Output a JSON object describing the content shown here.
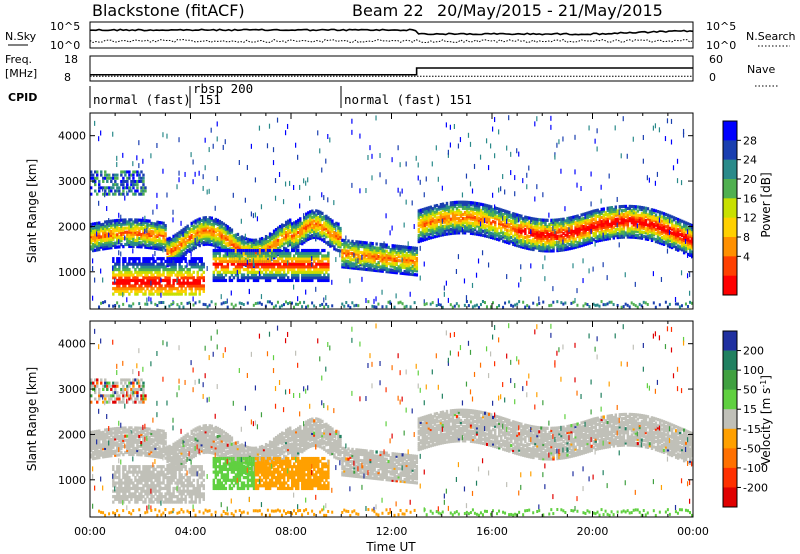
{
  "header": {
    "station": "Blackstone (fitACF)",
    "beam": "Beam 22",
    "date_range": "20/May/2015 - 21/May/2015"
  },
  "noise_panel": {
    "left_label": "N.Sky",
    "right_label": "N.Search",
    "left_ticks": [
      "10^5",
      "10^0"
    ],
    "right_ticks": [
      "10^5",
      "10^0"
    ]
  },
  "freq_panel": {
    "left_label_1": "Freq.",
    "left_label_2": "[MHz]",
    "right_label": "Nave",
    "left_ticks": [
      "18",
      "8"
    ],
    "right_ticks": [
      "60",
      "0"
    ]
  },
  "cpid_panel": {
    "label": "CPID",
    "segments": [
      {
        "text": "normal (fast) 151",
        "start_hour": 0
      },
      {
        "text": "rbsp 200",
        "start_hour": 4
      },
      {
        "text": "normal (fast) 151",
        "start_hour": 10
      }
    ],
    "overlap_text": "151"
  },
  "power_panel": {
    "ylabel": "Slant Range [km]",
    "yticks": [
      "4000",
      "3000",
      "2000",
      "1000"
    ],
    "colorbar_title": "Power [dB]",
    "colorbar_ticks": [
      "28",
      "24",
      "20",
      "16",
      "12",
      "8",
      "4"
    ],
    "colors": [
      "#0000ff",
      "#1a3fb0",
      "#2a8a8a",
      "#50b050",
      "#c8e000",
      "#ffd000",
      "#ff9000",
      "#ff4000",
      "#ff0000"
    ]
  },
  "velocity_panel": {
    "ylabel": "Slant Range [km]",
    "yticks": [
      "4000",
      "3000",
      "2000",
      "1000"
    ],
    "colorbar_title": "Velocity [m s",
    "colorbar_sup": "-1",
    "colorbar_close": "]",
    "colorbar_ticks": [
      "200",
      "100",
      "50",
      "15",
      "-15",
      "-50",
      "-100",
      "-200"
    ],
    "colors": [
      "#2030a0",
      "#208060",
      "#40a040",
      "#60d040",
      "#c0c0b8",
      "#ffa000",
      "#ff7000",
      "#ff3000",
      "#e00000"
    ],
    "ground_scatter_color": "#c0c0b8"
  },
  "x_axis": {
    "ticks": [
      "00:00",
      "04:00",
      "08:00",
      "12:00",
      "16:00",
      "20:00",
      "00:00"
    ],
    "label": "Time UT"
  },
  "chart_data": {
    "type": "heatmap",
    "x_range_hours": [
      0,
      24
    ],
    "y_range_km": [
      180,
      4500
    ],
    "power_scale_db": [
      0,
      30
    ],
    "velocity_scale": [
      -200,
      200
    ],
    "noise_step_hour": 13,
    "freq_step_hour": 13,
    "freq_low_mhz": 10.5,
    "freq_high_mhz": 13.2
  }
}
